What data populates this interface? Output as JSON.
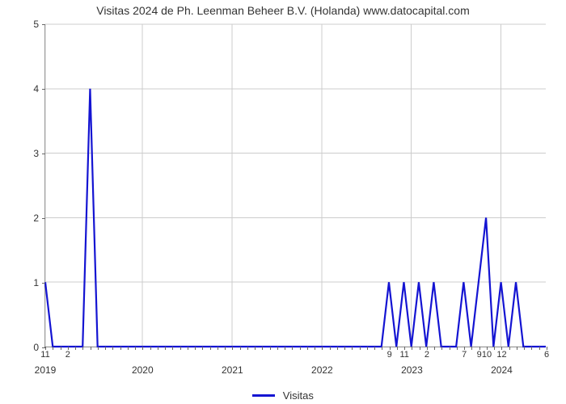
{
  "chart": {
    "type": "line",
    "title": "Visitas 2024 de Ph. Leenman Beheer B.V. (Holanda) www.datocapital.com",
    "title_fontsize": 14,
    "background_color": "#ffffff",
    "grid_color": "#cccccc",
    "axis_color": "#666666",
    "tick_fontsize": 12,
    "y": {
      "lim": [
        0,
        5
      ],
      "ticks": [
        0,
        1,
        2,
        3,
        4,
        5
      ]
    },
    "x": {
      "n_points": 68,
      "group_labels": [
        {
          "label": "2019",
          "at_index": 0
        },
        {
          "label": "2020",
          "at_index": 13
        },
        {
          "label": "2021",
          "at_index": 25
        },
        {
          "label": "2022",
          "at_index": 37
        },
        {
          "label": "2023",
          "at_index": 49
        },
        {
          "label": "2024",
          "at_index": 61
        }
      ],
      "point_labels": [
        {
          "label": "11",
          "at_index": 0
        },
        {
          "label": "2",
          "at_index": 3
        },
        {
          "label": "9",
          "at_index": 46
        },
        {
          "label": "11",
          "at_index": 48
        },
        {
          "label": "2",
          "at_index": 51
        },
        {
          "label": "7",
          "at_index": 56
        },
        {
          "label": "9",
          "at_index": 58
        },
        {
          "label": "10",
          "at_index": 59
        },
        {
          "label": "12",
          "at_index": 61
        },
        {
          "label": "6",
          "at_index": 67
        }
      ],
      "minor_ticks_every": 1
    },
    "series": [
      {
        "name": "Visitas",
        "color": "#1414d2",
        "line_width": 2.2,
        "values": [
          1,
          0,
          0,
          0,
          0,
          0,
          4,
          0,
          0,
          0,
          0,
          0,
          0,
          0,
          0,
          0,
          0,
          0,
          0,
          0,
          0,
          0,
          0,
          0,
          0,
          0,
          0,
          0,
          0,
          0,
          0,
          0,
          0,
          0,
          0,
          0,
          0,
          0,
          0,
          0,
          0,
          0,
          0,
          0,
          0,
          0,
          1,
          0,
          1,
          0,
          1,
          0,
          1,
          0,
          0,
          0,
          1,
          0,
          1,
          2,
          0,
          1,
          0,
          1,
          0,
          0,
          0,
          0
        ]
      }
    ],
    "legend": {
      "label": "Visitas"
    }
  }
}
